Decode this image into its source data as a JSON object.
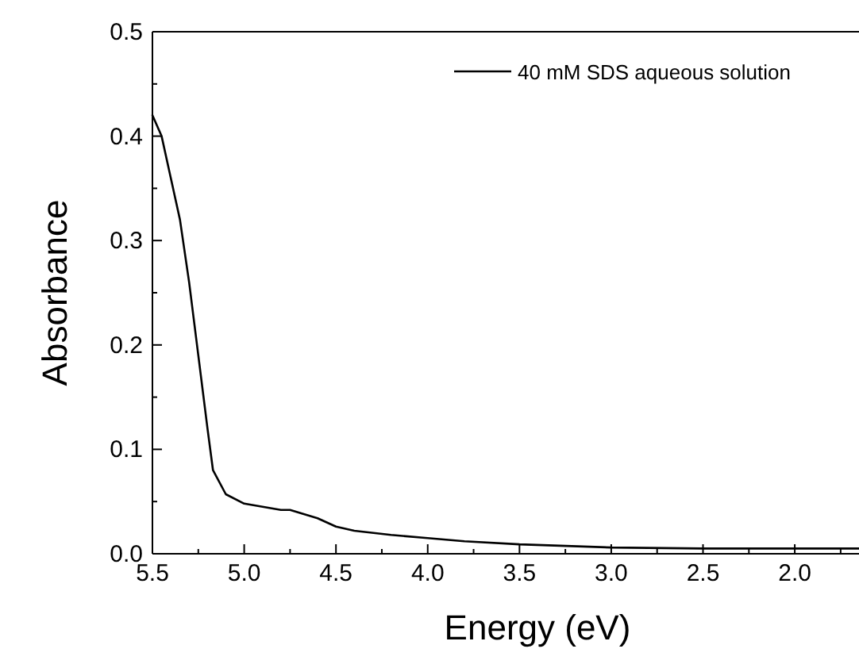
{
  "chart_data": {
    "type": "line",
    "xlabel": "Energy (eV)",
    "ylabel": "Absorbance",
    "xlim": [
      5.5,
      1.65
    ],
    "ylim": [
      0,
      0.5
    ],
    "xticks": [
      5.5,
      {
        "value": 5.25,
        "label": null
      },
      "5.0",
      {
        "value": 4.75,
        "label": null
      },
      4.5,
      {
        "value": 4.25,
        "label": null
      },
      "4.0",
      {
        "value": 3.75,
        "label": null
      },
      3.5,
      {
        "value": 3.25,
        "label": null
      },
      "3.0",
      {
        "value": 2.75,
        "label": null
      },
      2.5,
      {
        "value": 2.25,
        "label": null
      },
      "2.0",
      {
        "value": 1.75,
        "label": null
      }
    ],
    "yticks": [
      "0.0",
      {
        "value": 0.05,
        "label": null
      },
      0.1,
      {
        "value": 0.15,
        "label": null
      },
      0.2,
      {
        "value": 0.25,
        "label": null
      },
      0.3,
      {
        "value": 0.35,
        "label": null
      },
      0.4,
      {
        "value": 0.45,
        "label": null
      },
      0.5
    ],
    "legend": "top right",
    "marker": "none",
    "line_style": "solid",
    "series": [
      {
        "name": "40 mM SDS aqueous solution",
        "color": "#000000",
        "x": [
          5.5,
          5.45,
          5.4,
          5.35,
          5.3,
          5.25,
          5.2,
          5.17,
          5.1,
          5.0,
          4.9,
          4.8,
          4.75,
          4.6,
          4.5,
          4.4,
          4.2,
          4.0,
          3.8,
          3.5,
          3.0,
          2.5,
          2.0,
          1.65
        ],
        "values": [
          0.42,
          0.4,
          0.36,
          0.32,
          0.26,
          0.19,
          0.12,
          0.08,
          0.057,
          0.048,
          0.045,
          0.042,
          0.042,
          0.034,
          0.026,
          0.022,
          0.018,
          0.015,
          0.012,
          0.009,
          0.006,
          0.005,
          0.005,
          0.005
        ]
      }
    ]
  }
}
